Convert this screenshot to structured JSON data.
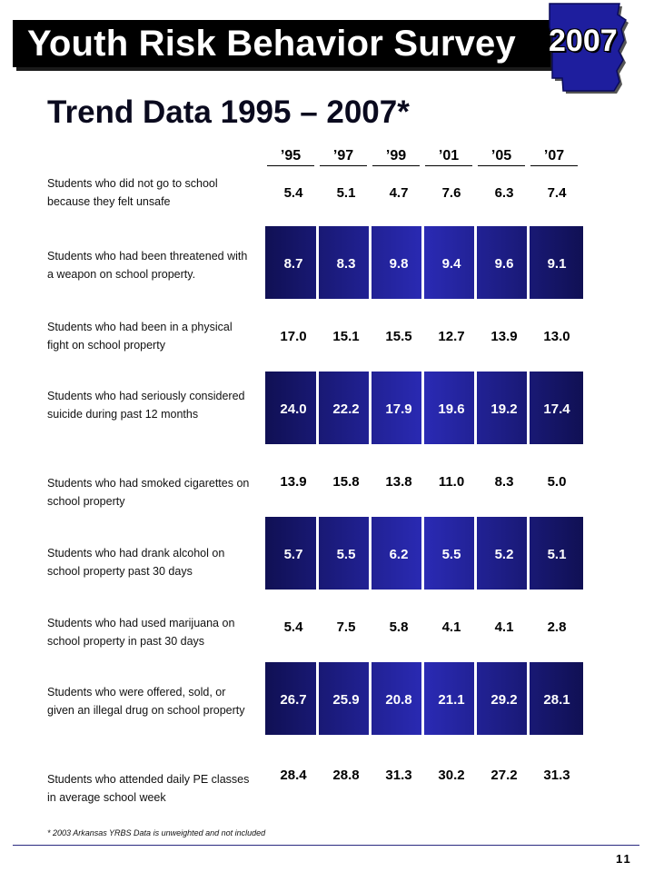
{
  "header": {
    "title": "Youth Risk Behavior Survey",
    "year_badge": "2007",
    "subtitle": "Trend Data 1995 – 2007*"
  },
  "years": [
    "’95",
    "’97",
    "’99",
    "’01",
    "’05",
    "’07"
  ],
  "rows": [
    {
      "label": "Students who did not go to school because they felt unsafe",
      "values": [
        "5.4",
        "5.1",
        "4.7",
        "7.6",
        "6.3",
        "7.4"
      ],
      "shaded": false
    },
    {
      "label": "Students who had been threatened with a weapon on school property.",
      "values": [
        "8.7",
        "8.3",
        "9.8",
        "9.4",
        "9.6",
        "9.1"
      ],
      "shaded": true
    },
    {
      "label": "Students who had been in a physical fight on school property",
      "values": [
        "17.0",
        "15.1",
        "15.5",
        "12.7",
        "13.9",
        "13.0"
      ],
      "shaded": false
    },
    {
      "label": "Students who had seriously considered suicide during past 12 months",
      "values": [
        "24.0",
        "22.2",
        "17.9",
        "19.6",
        "19.2",
        "17.4"
      ],
      "shaded": true
    },
    {
      "label": "Students who had smoked cigarettes on school property",
      "values": [
        "13.9",
        "15.8",
        "13.8",
        "11.0",
        "8.3",
        "5.0"
      ],
      "shaded": false
    },
    {
      "label": "Students who had drank alcohol on school property past 30 days",
      "values": [
        "5.7",
        "5.5",
        "6.2",
        "5.5",
        "5.2",
        "5.1"
      ],
      "shaded": true
    },
    {
      "label": "Students who had used marijuana on school property in past 30 days",
      "values": [
        "5.4",
        "7.5",
        "5.8",
        "4.1",
        "4.1",
        "2.8"
      ],
      "shaded": false
    },
    {
      "label": "Students who were offered, sold, or given an illegal drug on school property",
      "values": [
        "26.7",
        "25.9",
        "20.8",
        "21.1",
        "29.2",
        "28.1"
      ],
      "shaded": true
    },
    {
      "label": "Students who attended daily PE classes in average school week",
      "values": [
        "28.4",
        "28.8",
        "31.3",
        "30.2",
        "27.2",
        "31.3"
      ],
      "shaded": false
    }
  ],
  "footnote": "*  2003 Arkansas YRBS Data is unweighted and not included",
  "page_number": "11",
  "colors": {
    "band_dark": "#101054",
    "band_mid": "#2a2ab4",
    "state_fill": "#1e1e9e"
  }
}
